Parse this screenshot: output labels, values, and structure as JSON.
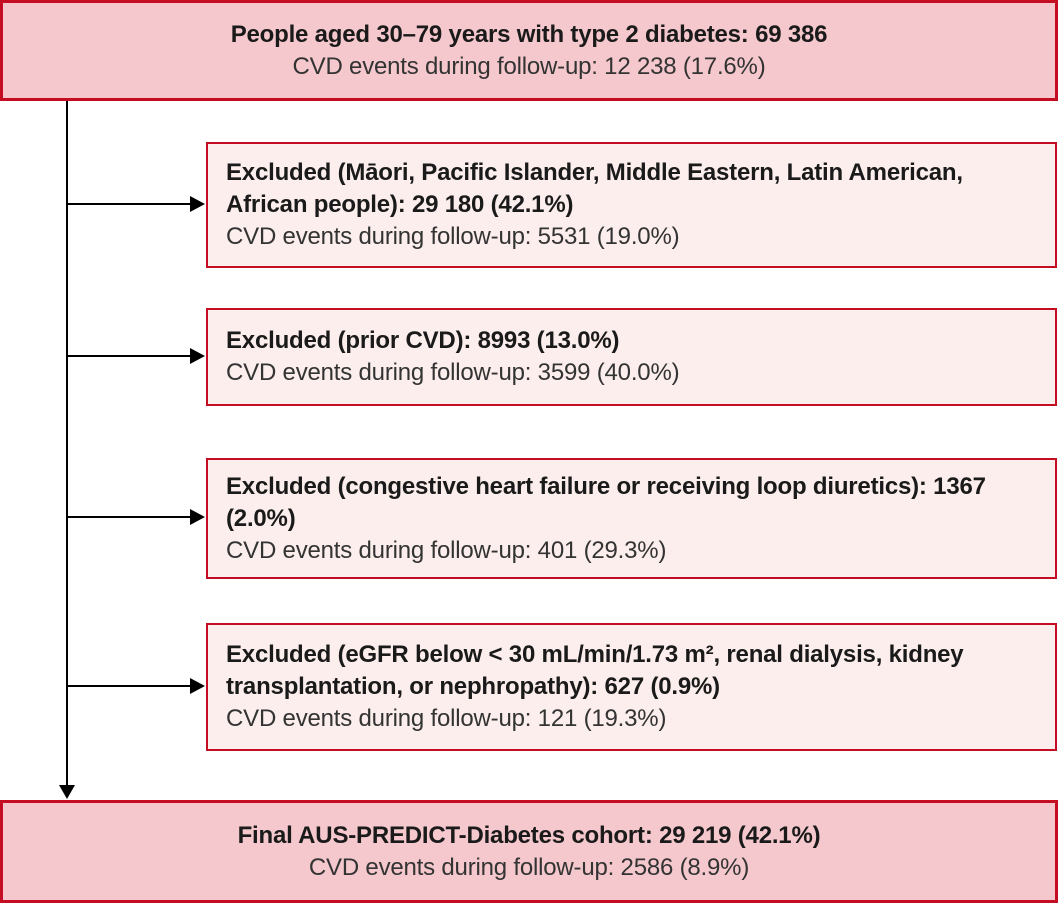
{
  "diagram": {
    "type": "cohort-exclusion-flowchart",
    "colors": {
      "major_box_fill": "#f4c8cc",
      "exclusion_box_fill": "#fbeeec",
      "box_border_red": "#c40d23",
      "connector_black": "#000000",
      "text_primary": "#1a1a1a",
      "text_secondary": "#333333"
    },
    "boxes": {
      "population": {
        "line1": "People aged 30–79 years with type 2 diabetes: 69 386",
        "line2": "CVD events during follow-up: 12 238 (17.6%)"
      },
      "exclusions": [
        {
          "main": "Excluded (Māori, Pacific Islander, Middle Eastern, Latin American, African people): 29 180 (42.1%)",
          "sub": "CVD events during follow-up: 5531 (19.0%)"
        },
        {
          "main": "Excluded (prior CVD): 8993 (13.0%)",
          "sub": "CVD events during follow-up: 3599 (40.0%)"
        },
        {
          "main": "Excluded (congestive heart failure or receiving loop diuretics): 1367 (2.0%)",
          "sub": "CVD events during follow-up: 401 (29.3%)"
        },
        {
          "main": "Excluded (eGFR below < 30 mL/min/1.73 m², renal dialysis, kidney transplantation, or nephropathy): 627 (0.9%)",
          "sub": "CVD events during follow-up: 121 (19.3%)"
        }
      ],
      "final": {
        "line1": "Final AUS-PREDICT-Diabetes cohort: 29 219 (42.1%)",
        "line2": "CVD events during follow-up: 2586 (8.9%)"
      }
    }
  }
}
